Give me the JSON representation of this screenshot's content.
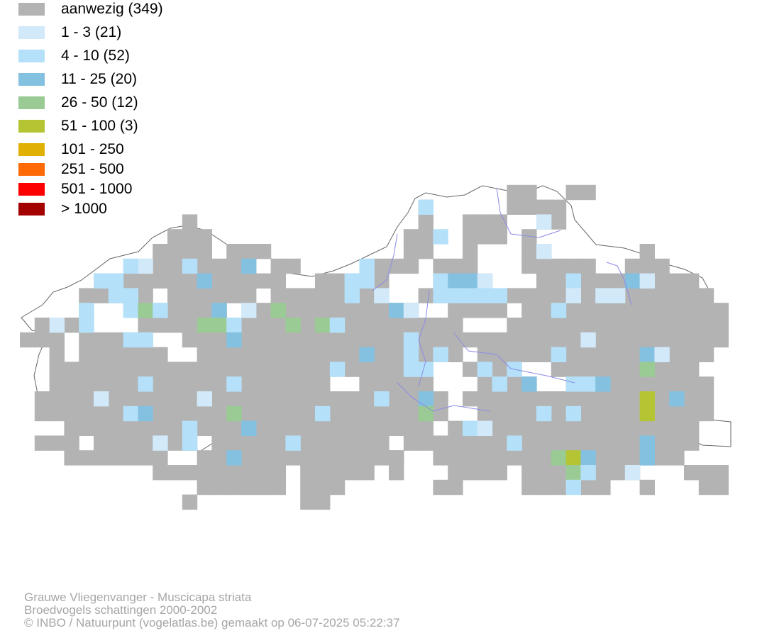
{
  "legend": {
    "items": [
      {
        "label": "aanwezig (349)",
        "color": "#b3b3b3"
      },
      {
        "label": "1 - 3 (21)",
        "color": "#d1e9f9"
      },
      {
        "label": "4 - 10 (52)",
        "color": "#b4e1f9"
      },
      {
        "label": "11 - 25 (20)",
        "color": "#84c1e0"
      },
      {
        "label": "26 - 50 (12)",
        "color": "#9acb95"
      },
      {
        "label": "51 - 100 (3)",
        "color": "#b5c432"
      },
      {
        "label": "101 - 250",
        "color": "#e0b104"
      },
      {
        "label": "251 - 500",
        "color": "#fd6a06"
      },
      {
        "label": "501 - 1000",
        "color": "#fd0000"
      },
      {
        "label": "> 1000",
        "color": "#a30000"
      }
    ]
  },
  "map": {
    "region": "Vlaanderen",
    "outline_color": "#666666",
    "river_color": "#8a8ae6"
  },
  "caption": {
    "species": "Grauwe Vliegenvanger - Muscicapa striata",
    "dataset": "Broedvogels schattingen 2000-2002",
    "credit": "© INBO / Natuurpunt (vogelatlas.be) gemaakt op 06-07-2025 05:22:37"
  }
}
